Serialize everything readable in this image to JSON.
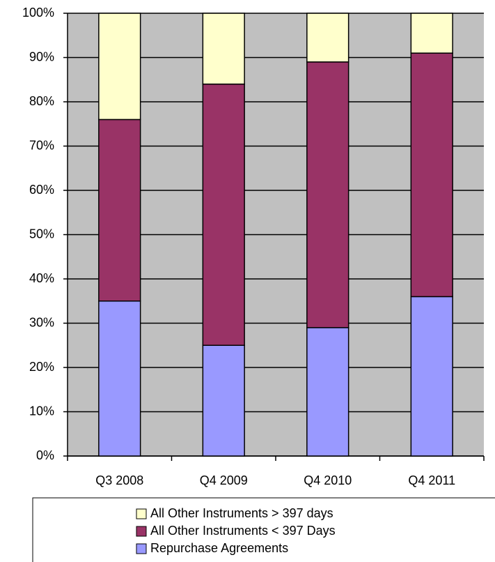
{
  "chart_data": {
    "type": "stacked_bar",
    "categories": [
      "Q3 2008",
      "Q4 2009",
      "Q4 2010",
      "Q4 2011"
    ],
    "series": [
      {
        "name": "Repurchase Agreements",
        "color": "#9999ff",
        "values": [
          35,
          25,
          29,
          36
        ]
      },
      {
        "name": "All Other Instruments < 397 Days",
        "color": "#993366",
        "values": [
          41,
          59,
          60,
          55
        ]
      },
      {
        "name": "All Other Instruments > 397 days",
        "color": "#ffffcc",
        "values": [
          24,
          16,
          11,
          9
        ]
      }
    ],
    "ylim": [
      0,
      100
    ],
    "yticks": [
      {
        "value": 0,
        "label": "0%"
      },
      {
        "value": 10,
        "label": "10%"
      },
      {
        "value": 20,
        "label": "20%"
      },
      {
        "value": 30,
        "label": "30%"
      },
      {
        "value": 40,
        "label": "40%"
      },
      {
        "value": 50,
        "label": "50%"
      },
      {
        "value": 60,
        "label": "60%"
      },
      {
        "value": 70,
        "label": "70%"
      },
      {
        "value": 80,
        "label": "80%"
      },
      {
        "value": 90,
        "label": "90%"
      },
      {
        "value": 100,
        "label": "100%"
      }
    ],
    "grid": true,
    "legend": "bottom"
  }
}
